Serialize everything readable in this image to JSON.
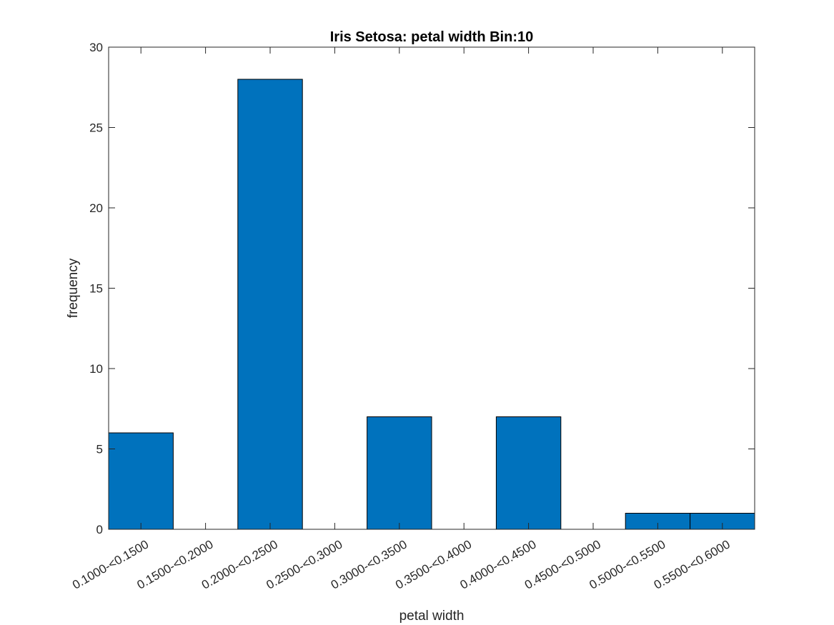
{
  "chart_data": {
    "type": "bar",
    "title": "Iris Setosa: petal width Bin:10",
    "xlabel": "petal width",
    "ylabel": "frequency",
    "categories": [
      "0.1000-<0.1500",
      "0.1500-<0.2000",
      "0.2000-<0.2500",
      "0.2500-<0.3000",
      "0.3000-<0.3500",
      "0.3500-<0.4000",
      "0.4000-<0.4500",
      "0.4500-<0.5000",
      "0.5000-<0.5500",
      "0.5500-<0.6000"
    ],
    "values": [
      6,
      0,
      28,
      0,
      7,
      0,
      7,
      0,
      1,
      1
    ],
    "ylim": [
      0,
      30
    ],
    "yticks": [
      0,
      5,
      10,
      15,
      20,
      25,
      30
    ],
    "grid": false,
    "bar_color": "#0072BD",
    "bar_edge_color": "#000000"
  }
}
